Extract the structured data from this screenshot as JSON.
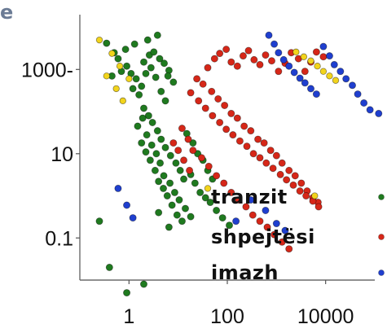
{
  "corner_text": "e",
  "chart_data": {
    "type": "scatter",
    "title": "",
    "xlabel": "",
    "ylabel": "",
    "xscale": "log",
    "yscale": "log",
    "xlim": [
      0.1,
      100000
    ],
    "ylim": [
      0.01,
      20000
    ],
    "grid": false,
    "legend_position": "bottom-right",
    "x_ticks": [
      {
        "label": "1",
        "value": 1
      },
      {
        "label": "100",
        "value": 100
      },
      {
        "label": "10000",
        "value": 10000
      }
    ],
    "y_ticks": [
      {
        "label": "1000-",
        "value": 1000
      },
      {
        "label": "10",
        "value": 10
      },
      {
        "label": "0.1",
        "value": 0.1
      }
    ],
    "series": [
      {
        "name": "tranzit",
        "color": "#1f7a1f",
        "points": [
          {
            "x": 0.7,
            "y": 900
          },
          {
            "x": 0.9,
            "y": 1200
          },
          {
            "x": 1.1,
            "y": 800
          },
          {
            "x": 1.4,
            "y": 600
          },
          {
            "x": 1.8,
            "y": 400
          },
          {
            "x": 2.2,
            "y": 800
          },
          {
            "x": 2.8,
            "y": 1100
          },
          {
            "x": 3.5,
            "y": 650
          },
          {
            "x": 4.5,
            "y": 300
          },
          {
            "x": 5.5,
            "y": 180
          },
          {
            "x": 6.5,
            "y": 950
          },
          {
            "x": 8.0,
            "y": 500
          },
          {
            "x": 1.2,
            "y": 350
          },
          {
            "x": 1.6,
            "y": 250
          },
          {
            "x": 2.0,
            "y": 1500
          },
          {
            "x": 2.6,
            "y": 2200
          },
          {
            "x": 3.2,
            "y": 2600
          },
          {
            "x": 4.2,
            "y": 1800
          },
          {
            "x": 5.2,
            "y": 1400
          },
          {
            "x": 6.2,
            "y": 700
          },
          {
            "x": 0.85,
            "y": 3000
          },
          {
            "x": 1.3,
            "y": 4000
          },
          {
            "x": 2.4,
            "y": 5000
          },
          {
            "x": 3.8,
            "y": 6500
          },
          {
            "x": 0.5,
            "y": 2500
          },
          {
            "x": 0.6,
            "y": 1800
          },
          {
            "x": 0.45,
            "y": 700
          },
          {
            "x": 0.35,
            "y": 4200
          },
          {
            "x": 2.0,
            "y": 120
          },
          {
            "x": 2.5,
            "y": 80
          },
          {
            "x": 3.0,
            "y": 55
          },
          {
            "x": 3.8,
            "y": 35
          },
          {
            "x": 4.5,
            "y": 22
          },
          {
            "x": 5.5,
            "y": 14
          },
          {
            "x": 7.0,
            "y": 9
          },
          {
            "x": 9.0,
            "y": 6
          },
          {
            "x": 11.0,
            "y": 4
          },
          {
            "x": 13.0,
            "y": 2.5
          },
          {
            "x": 1.8,
            "y": 18
          },
          {
            "x": 2.2,
            "y": 11
          },
          {
            "x": 2.7,
            "y": 7
          },
          {
            "x": 3.4,
            "y": 4
          },
          {
            "x": 4.0,
            "y": 2.2
          },
          {
            "x": 5.0,
            "y": 1.5
          },
          {
            "x": 6.0,
            "y": 1.0
          },
          {
            "x": 7.5,
            "y": 0.6
          },
          {
            "x": 9.5,
            "y": 0.35
          },
          {
            "x": 12.0,
            "y": 0.25
          },
          {
            "x": 1.5,
            "y": 45
          },
          {
            "x": 1.9,
            "y": 70
          },
          {
            "x": 2.3,
            "y": 28
          },
          {
            "x": 2.9,
            "y": 16
          },
          {
            "x": 3.6,
            "y": 10
          },
          {
            "x": 4.3,
            "y": 6
          },
          {
            "x": 5.1,
            "y": 3
          },
          {
            "x": 6.8,
            "y": 2
          },
          {
            "x": 8.5,
            "y": 1.2
          },
          {
            "x": 10.5,
            "y": 0.8
          },
          {
            "x": 14.0,
            "y": 0.5
          },
          {
            "x": 18.0,
            "y": 0.32
          },
          {
            "x": 15.0,
            "y": 30
          },
          {
            "x": 20.0,
            "y": 18
          },
          {
            "x": 25.0,
            "y": 10
          },
          {
            "x": 32.0,
            "y": 7
          },
          {
            "x": 40.0,
            "y": 4
          },
          {
            "x": 50.0,
            "y": 2.5
          },
          {
            "x": 0.25,
            "y": 0.25
          },
          {
            "x": 0.4,
            "y": 0.02
          },
          {
            "x": 0.9,
            "y": 0.005
          },
          {
            "x": 2.0,
            "y": 0.008
          },
          {
            "x": 4.0,
            "y": 0.4
          },
          {
            "x": 6.5,
            "y": 0.18
          },
          {
            "x": 18.0,
            "y": 3.2
          },
          {
            "x": 22.0,
            "y": 2.0
          },
          {
            "x": 28.0,
            "y": 1.2
          },
          {
            "x": 36.0,
            "y": 0.9
          },
          {
            "x": 45.0,
            "y": 0.7
          },
          {
            "x": 60.0,
            "y": 0.45
          },
          {
            "x": 80.0,
            "y": 0.3
          },
          {
            "x": 110.0,
            "y": 0.2
          }
        ]
      },
      {
        "name": "shpejtësi",
        "color": "#d62718",
        "points": [
          {
            "x": 40,
            "y": 1100
          },
          {
            "x": 55,
            "y": 1800
          },
          {
            "x": 70,
            "y": 2400
          },
          {
            "x": 95,
            "y": 3000
          },
          {
            "x": 120,
            "y": 1500
          },
          {
            "x": 160,
            "y": 1200
          },
          {
            "x": 210,
            "y": 2100
          },
          {
            "x": 270,
            "y": 2800
          },
          {
            "x": 350,
            "y": 1700
          },
          {
            "x": 460,
            "y": 1300
          },
          {
            "x": 600,
            "y": 2200
          },
          {
            "x": 800,
            "y": 1600
          },
          {
            "x": 1100,
            "y": 900
          },
          {
            "x": 1500,
            "y": 1400
          },
          {
            "x": 2000,
            "y": 2500
          },
          {
            "x": 2800,
            "y": 1800
          },
          {
            "x": 3800,
            "y": 900
          },
          {
            "x": 5000,
            "y": 1500
          },
          {
            "x": 6500,
            "y": 2600
          },
          {
            "x": 9000,
            "y": 2000
          },
          {
            "x": 24,
            "y": 600
          },
          {
            "x": 32,
            "y": 450
          },
          {
            "x": 48,
            "y": 300
          },
          {
            "x": 65,
            "y": 200
          },
          {
            "x": 88,
            "y": 140
          },
          {
            "x": 120,
            "y": 90
          },
          {
            "x": 160,
            "y": 70
          },
          {
            "x": 220,
            "y": 45
          },
          {
            "x": 300,
            "y": 35
          },
          {
            "x": 420,
            "y": 22
          },
          {
            "x": 560,
            "y": 18
          },
          {
            "x": 760,
            "y": 12
          },
          {
            "x": 1000,
            "y": 9
          },
          {
            "x": 1300,
            "y": 6
          },
          {
            "x": 1800,
            "y": 4
          },
          {
            "x": 2400,
            "y": 3
          },
          {
            "x": 3200,
            "y": 2
          },
          {
            "x": 4200,
            "y": 1.3
          },
          {
            "x": 5500,
            "y": 0.9
          },
          {
            "x": 7000,
            "y": 0.7
          },
          {
            "x": 18,
            "y": 280
          },
          {
            "x": 26,
            "y": 180
          },
          {
            "x": 36,
            "y": 120
          },
          {
            "x": 50,
            "y": 80
          },
          {
            "x": 70,
            "y": 55
          },
          {
            "x": 95,
            "y": 38
          },
          {
            "x": 130,
            "y": 28
          },
          {
            "x": 180,
            "y": 20
          },
          {
            "x": 250,
            "y": 15
          },
          {
            "x": 340,
            "y": 10
          },
          {
            "x": 460,
            "y": 8
          },
          {
            "x": 620,
            "y": 6
          },
          {
            "x": 850,
            "y": 4.5
          },
          {
            "x": 1200,
            "y": 3.2
          },
          {
            "x": 1600,
            "y": 2.4
          },
          {
            "x": 2200,
            "y": 1.8
          },
          {
            "x": 3000,
            "y": 1.3
          },
          {
            "x": 4000,
            "y": 1.0
          },
          {
            "x": 5500,
            "y": 0.75
          },
          {
            "x": 7200,
            "y": 0.55
          },
          {
            "x": 12,
            "y": 40
          },
          {
            "x": 16,
            "y": 22
          },
          {
            "x": 20,
            "y": 12
          },
          {
            "x": 30,
            "y": 8
          },
          {
            "x": 42,
            "y": 5
          },
          {
            "x": 60,
            "y": 3
          },
          {
            "x": 85,
            "y": 2
          },
          {
            "x": 120,
            "y": 1.2
          },
          {
            "x": 170,
            "y": 0.8
          },
          {
            "x": 240,
            "y": 0.55
          },
          {
            "x": 330,
            "y": 0.35
          },
          {
            "x": 460,
            "y": 0.25
          },
          {
            "x": 650,
            "y": 0.18
          },
          {
            "x": 900,
            "y": 0.12
          },
          {
            "x": 1300,
            "y": 0.08
          },
          {
            "x": 1800,
            "y": 0.055
          },
          {
            "x": 8,
            "y": 18
          },
          {
            "x": 10,
            "y": 12
          },
          {
            "x": 13,
            "y": 7
          },
          {
            "x": 17,
            "y": 4
          }
        ]
      },
      {
        "name": "imazh",
        "color": "#1f3fcf",
        "points": [
          {
            "x": 9000,
            "y": 3500
          },
          {
            "x": 12000,
            "y": 2100
          },
          {
            "x": 15000,
            "y": 1300
          },
          {
            "x": 20000,
            "y": 900
          },
          {
            "x": 26000,
            "y": 600
          },
          {
            "x": 35000,
            "y": 420
          },
          {
            "x": 45000,
            "y": 260
          },
          {
            "x": 60000,
            "y": 160
          },
          {
            "x": 80000,
            "y": 110
          },
          {
            "x": 120000,
            "y": 90
          },
          {
            "x": 700,
            "y": 6500
          },
          {
            "x": 900,
            "y": 4000
          },
          {
            "x": 1100,
            "y": 2500
          },
          {
            "x": 1400,
            "y": 1700
          },
          {
            "x": 1800,
            "y": 1200
          },
          {
            "x": 2300,
            "y": 850
          },
          {
            "x": 3000,
            "y": 620
          },
          {
            "x": 3800,
            "y": 480
          },
          {
            "x": 5000,
            "y": 350
          },
          {
            "x": 6500,
            "y": 260
          },
          {
            "x": 0.6,
            "y": 1.5
          },
          {
            "x": 0.9,
            "y": 0.6
          },
          {
            "x": 1.2,
            "y": 0.3
          },
          {
            "x": 150,
            "y": 0.25
          },
          {
            "x": 300,
            "y": 0.8
          },
          {
            "x": 600,
            "y": 0.45
          },
          {
            "x": 1000,
            "y": 0.22
          },
          {
            "x": 1500,
            "y": 0.15
          }
        ]
      },
      {
        "name": "",
        "color": "#f2d41c",
        "points": [
          {
            "x": 0.25,
            "y": 5000
          },
          {
            "x": 0.45,
            "y": 2400
          },
          {
            "x": 0.65,
            "y": 1200
          },
          {
            "x": 1.0,
            "y": 600
          },
          {
            "x": 0.35,
            "y": 700
          },
          {
            "x": 0.55,
            "y": 350
          },
          {
            "x": 0.75,
            "y": 180
          },
          {
            "x": 40,
            "y": 1.5
          },
          {
            "x": 6000,
            "y": 1.0
          },
          {
            "x": 2500,
            "y": 2600
          },
          {
            "x": 3600,
            "y": 2000
          },
          {
            "x": 5000,
            "y": 1600
          },
          {
            "x": 6800,
            "y": 1200
          },
          {
            "x": 9000,
            "y": 900
          },
          {
            "x": 12000,
            "y": 700
          },
          {
            "x": 16000,
            "y": 550
          }
        ]
      }
    ]
  },
  "legend": {
    "items": [
      {
        "label": "tranzit",
        "color": "#1f7a1f"
      },
      {
        "label": "shpejtësi",
        "color": "#d62718"
      },
      {
        "label": "imazh",
        "color": "#1f3fcf"
      }
    ]
  }
}
